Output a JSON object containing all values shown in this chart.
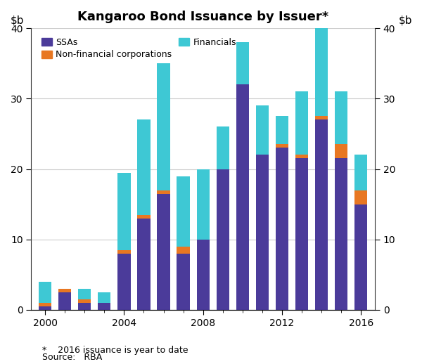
{
  "title": "Kangaroo Bond Issuance by Issuer*",
  "footnote": "*    2016 issuance is year to date",
  "source": "Source:   RBA",
  "years": [
    2000,
    2001,
    2002,
    2003,
    2004,
    2005,
    2006,
    2007,
    2008,
    2009,
    2010,
    2011,
    2012,
    2013,
    2014,
    2015,
    2016
  ],
  "ssas": [
    0.5,
    2.5,
    1.0,
    1.0,
    8.0,
    13.0,
    16.5,
    8.0,
    10.0,
    20.0,
    32.0,
    22.0,
    23.0,
    21.5,
    27.0,
    21.5,
    15.0
  ],
  "non_financial": [
    0.5,
    0.5,
    0.5,
    0.0,
    0.5,
    0.5,
    0.5,
    1.0,
    0.0,
    0.0,
    0.0,
    0.0,
    0.5,
    0.5,
    0.5,
    2.0,
    2.0
  ],
  "financials": [
    3.0,
    0.0,
    1.5,
    1.5,
    11.0,
    13.5,
    18.0,
    10.0,
    10.0,
    6.0,
    6.0,
    7.0,
    4.0,
    9.0,
    13.0,
    7.5,
    5.0
  ],
  "color_ssas": "#4B3B9A",
  "color_non_financial": "#E87722",
  "color_financials": "#3EC8D4",
  "ylim": [
    0,
    40
  ],
  "yticks": [
    0,
    10,
    20,
    30,
    40
  ],
  "bar_width": 0.65,
  "legend_items": [
    "SSAs",
    "Non-financial corporations",
    "Financials"
  ],
  "bg_color": "#ffffff",
  "grid_color": "#cccccc"
}
